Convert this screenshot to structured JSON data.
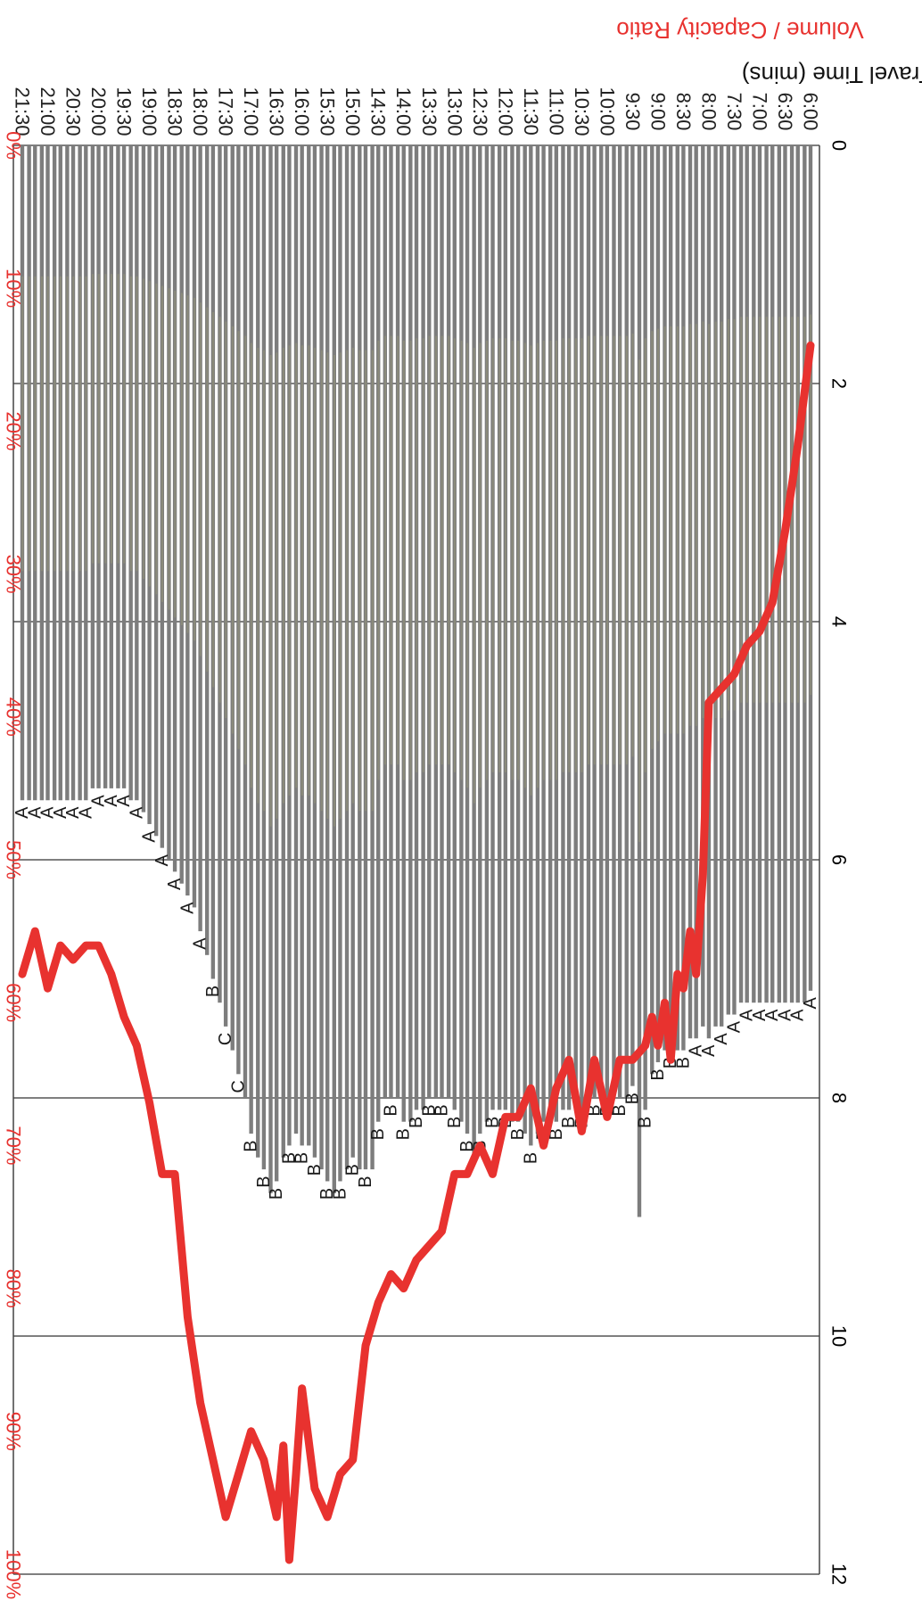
{
  "chart_data": {
    "type": "bar",
    "orientation": "rotated-180",
    "x_label": "",
    "y_left_label": "Travel Time (mins)",
    "y_right_label": "Volume / Capacity Ratio",
    "y_left_range": [
      0,
      12
    ],
    "y_left_ticks": [
      "0",
      "2",
      "4",
      "6",
      "8",
      "10",
      "12"
    ],
    "y_right_range": [
      0,
      100
    ],
    "y_right_ticks": [
      "0%",
      "10%",
      "20%",
      "30%",
      "40%",
      "50%",
      "60%",
      "70%",
      "80%",
      "90%",
      "100%"
    ],
    "grid": true,
    "colors": {
      "bar": "#7d7d7d",
      "bar_highlight": "#98987a",
      "line": "#e8322f",
      "right_axis": "#e8322f",
      "left_axis": "#000000"
    },
    "x_tick_labels": [
      "6:00",
      "6:30",
      "7:00",
      "7:30",
      "8:00",
      "8:30",
      "9:00",
      "9:30",
      "10:00",
      "10:30",
      "11:00",
      "11:30",
      "12:00",
      "12:30",
      "13:00",
      "13:30",
      "14:00",
      "14:30",
      "15:00",
      "15:30",
      "16:00",
      "16:30",
      "17:00",
      "17:30",
      "18:00",
      "18:30",
      "19:00",
      "19:30",
      "20:00",
      "20:30",
      "21:00",
      "21:30"
    ],
    "series": [
      {
        "name": "",
        "kind": "bar",
        "axis": "left",
        "x": [
          "6:00",
          "6:07",
          "6:15",
          "6:22",
          "6:30",
          "6:37",
          "6:45",
          "6:52",
          "7:00",
          "7:07",
          "7:15",
          "7:22",
          "7:30",
          "7:37",
          "7:45",
          "7:52",
          "8:00",
          "8:07",
          "8:15",
          "8:22",
          "8:30",
          "8:37",
          "8:45",
          "8:52",
          "9:00",
          "9:07",
          "9:15",
          "9:22",
          "9:30",
          "9:37",
          "9:45",
          "9:52",
          "10:00",
          "10:07",
          "10:15",
          "10:22",
          "10:30",
          "10:37",
          "10:45",
          "10:52",
          "11:00",
          "11:07",
          "11:15",
          "11:22",
          "11:30",
          "11:37",
          "11:45",
          "11:52",
          "12:00",
          "12:07",
          "12:15",
          "12:22",
          "12:30",
          "12:37",
          "12:45",
          "12:52",
          "13:00",
          "13:07",
          "13:15",
          "13:22",
          "13:30",
          "13:37",
          "13:45",
          "13:52",
          "14:00",
          "14:07",
          "14:15",
          "14:22",
          "14:30",
          "14:37",
          "14:45",
          "14:52",
          "15:00",
          "15:07",
          "15:15",
          "15:22",
          "15:30",
          "15:37",
          "15:45",
          "15:52",
          "16:00",
          "16:07",
          "16:15",
          "16:22",
          "16:30",
          "16:37",
          "16:45",
          "16:52",
          "17:00",
          "17:07",
          "17:15",
          "17:22",
          "17:30",
          "17:37",
          "17:45",
          "17:52",
          "18:00",
          "18:07",
          "18:15",
          "18:22",
          "18:30",
          "18:37",
          "18:45",
          "18:52",
          "19:00",
          "19:07",
          "19:15",
          "19:22",
          "19:30",
          "19:37",
          "19:45",
          "19:52",
          "20:00",
          "20:07",
          "20:15",
          "20:22",
          "20:30",
          "20:37",
          "20:45",
          "20:52",
          "21:00",
          "21:07",
          "21:15",
          "21:22",
          "21:30"
        ],
        "values": [
          7.1,
          7.2,
          7.2,
          7.2,
          7.2,
          7.2,
          7.2,
          7.2,
          7.2,
          7.2,
          7.2,
          7.2,
          7.3,
          7.3,
          7.4,
          7.4,
          7.5,
          7.4,
          7.5,
          7.5,
          7.6,
          7.6,
          7.6,
          7.6,
          7.7,
          7.8,
          8.1,
          9.0,
          7.9,
          8.0,
          8.0,
          8.0,
          8.0,
          8.0,
          8.0,
          8.0,
          8.1,
          8.1,
          8.1,
          8.1,
          8.2,
          8.2,
          8.2,
          8.3,
          8.4,
          8.3,
          8.2,
          8.2,
          8.1,
          8.1,
          8.1,
          8.2,
          8.3,
          8.5,
          8.3,
          8.2,
          8.1,
          8.0,
          8.0,
          8.0,
          8.0,
          8.1,
          8.1,
          8.2,
          8.2,
          8.0,
          8.0,
          8.0,
          8.2,
          8.6,
          8.6,
          8.6,
          8.5,
          8.6,
          8.7,
          8.8,
          8.7,
          8.6,
          8.5,
          8.4,
          8.4,
          8.3,
          8.4,
          8.5,
          8.7,
          8.8,
          8.6,
          8.5,
          8.3,
          8.0,
          7.8,
          7.6,
          7.4,
          7.2,
          7.0,
          6.8,
          6.6,
          6.4,
          6.3,
          6.2,
          6.1,
          6.0,
          5.9,
          5.8,
          5.7,
          5.6,
          5.5,
          5.5,
          5.4,
          5.4,
          5.4,
          5.4,
          5.4,
          5.4,
          5.5,
          5.5,
          5.5,
          5.5,
          5.5,
          5.5,
          5.5,
          5.5,
          5.5,
          5.5,
          5.5
        ],
        "level_of_service": [
          "A",
          "A",
          "A",
          "A",
          "A",
          "A",
          "A",
          "A",
          "A",
          "A",
          "A",
          "A",
          "A",
          "A",
          "A",
          "A",
          "A",
          "A",
          "A",
          "A",
          "B",
          "B",
          "B",
          "B",
          "B",
          "B",
          "B",
          "B",
          "B",
          "B",
          "B",
          "B",
          "B",
          "B",
          "B",
          "B",
          "B",
          "B",
          "B",
          "B",
          "B",
          "B",
          "B",
          "B",
          "B",
          "B",
          "B",
          "B",
          "B",
          "B",
          "B",
          "B",
          "B",
          "B",
          "B",
          "B",
          "B",
          "B",
          "B",
          "B",
          "B",
          "B",
          "B",
          "B",
          "B",
          "B",
          "B",
          "B",
          "B",
          "B",
          "B",
          "B",
          "B",
          "B",
          "B",
          "B",
          "B",
          "B",
          "B",
          "B",
          "B",
          "B",
          "B",
          "B",
          "B",
          "B",
          "B",
          "B",
          "B",
          "C",
          "C",
          "C",
          "C",
          "B",
          "B",
          "A",
          "A",
          "A",
          "A",
          "A",
          "A",
          "A",
          "A",
          "A",
          "A",
          "A",
          "A",
          "A",
          "A",
          "A",
          "A",
          "A",
          "A",
          "A",
          "A",
          "A",
          "A",
          "A",
          "A",
          "A",
          "A",
          "A",
          "A",
          "A",
          "A"
        ]
      },
      {
        "name": "",
        "kind": "line",
        "axis": "right",
        "x": [
          "6:00",
          "6:15",
          "6:30",
          "6:45",
          "7:00",
          "7:15",
          "7:30",
          "7:45",
          "8:00",
          "8:07",
          "8:15",
          "8:22",
          "8:30",
          "8:37",
          "8:45",
          "8:52",
          "9:00",
          "9:07",
          "9:15",
          "9:30",
          "9:45",
          "10:00",
          "10:15",
          "10:30",
          "10:45",
          "11:00",
          "11:15",
          "11:30",
          "11:45",
          "12:00",
          "12:15",
          "12:30",
          "12:45",
          "13:00",
          "13:15",
          "13:30",
          "13:45",
          "14:00",
          "14:15",
          "14:30",
          "14:45",
          "15:00",
          "15:15",
          "15:30",
          "15:45",
          "16:00",
          "16:07",
          "16:15",
          "16:22",
          "16:30",
          "16:45",
          "17:00",
          "17:15",
          "17:30",
          "17:45",
          "18:00",
          "18:15",
          "18:30",
          "18:45",
          "19:00",
          "19:15",
          "19:30",
          "19:45",
          "20:00",
          "20:15",
          "20:30",
          "20:45",
          "21:00",
          "21:15",
          "21:30"
        ],
        "values": [
          14,
          21,
          27,
          32,
          34,
          35,
          37,
          38,
          39,
          51,
          58,
          55,
          59,
          58,
          64,
          60,
          63,
          61,
          63,
          64,
          64,
          68,
          64,
          69,
          64,
          66,
          70,
          66,
          68,
          68,
          72,
          70,
          72,
          72,
          76,
          77,
          78,
          80,
          79,
          81,
          84,
          92,
          93,
          96,
          94,
          87,
          93,
          99,
          91,
          96,
          92,
          90,
          93,
          96,
          92,
          88,
          82,
          72,
          72,
          67,
          63,
          61,
          58,
          56,
          56,
          57,
          56,
          59,
          55,
          58
        ]
      }
    ]
  }
}
